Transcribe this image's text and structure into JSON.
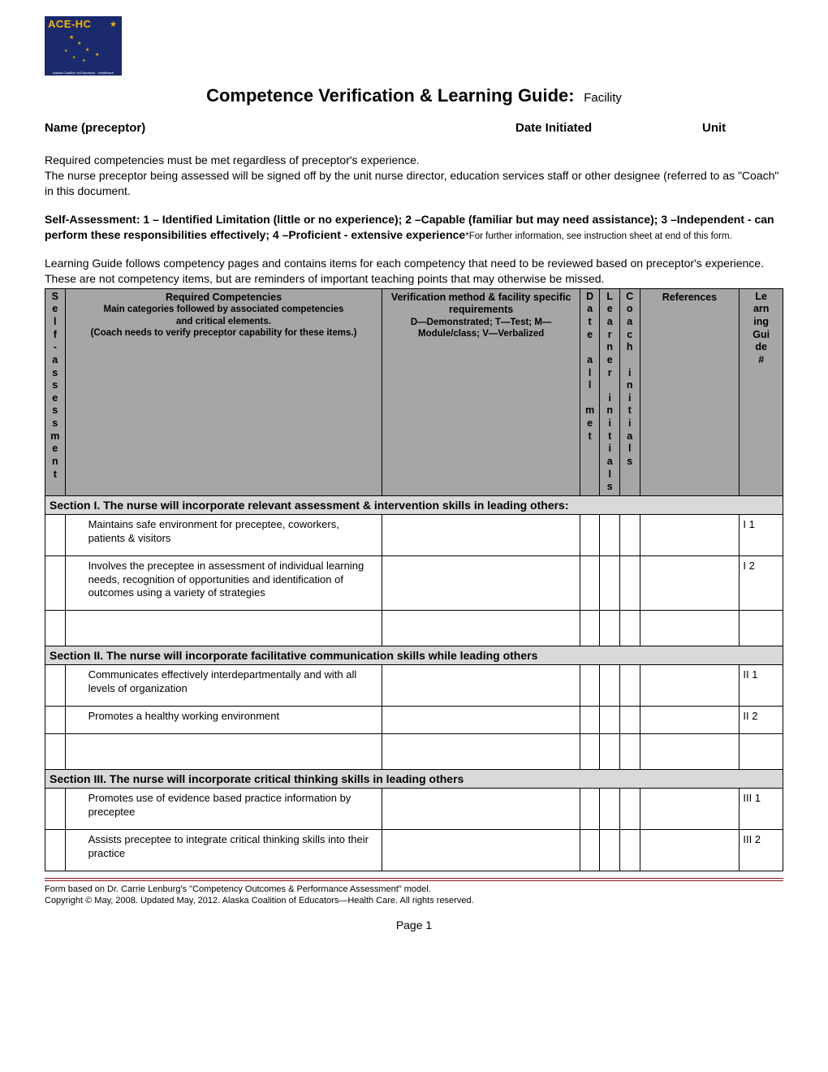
{
  "logo": {
    "brand": "ACE-HC",
    "subtext": "Alaska Coalition of Educators - Healthcare",
    "bg_color": "#1a2a6c",
    "text_color": "#f5b800"
  },
  "title": {
    "main": "Competence Verification & Learning Guide:",
    "suffix": "Facility",
    "main_fontsize": 22,
    "suffix_fontsize": 15
  },
  "fields": {
    "name_label": "Name (preceptor)",
    "date_label": "Date Initiated",
    "unit_label": "Unit"
  },
  "intro": {
    "p1": "Required competencies must be met regardless of preceptor's experience.",
    "p2": "The nurse preceptor being assessed will be signed off by the unit nurse director, education services staff or other designee (referred to as \"Coach\" in this document.",
    "self_assess": "Self-Assessment: 1 – Identified Limitation (little or no experience); 2 –Capable (familiar but may need assistance); 3 –Independent - can perform these responsibilities effectively; 4 –Proficient - extensive experience",
    "self_assess_note": "*For further information, see instruction sheet at end of this form.",
    "learning_guide": "Learning Guide follows competency pages and contains items for each competency that need to be reviewed based on preceptor's experience. These are not competency items, but are reminders of important teaching points that may otherwise be missed."
  },
  "columns": {
    "self": "Self-assessment",
    "req_title": "Required Competencies",
    "req_sub1": "Main categories followed by associated competencies",
    "req_sub2": "and critical elements.",
    "req_sub3": "(Coach needs to verify preceptor capability for these items.)",
    "verif_title": "Verification method & facility specific requirements",
    "verif_sub": "D—Demonstrated; T—Test; M—Module/class; V—Verbalized",
    "date_all_met": "Date all met",
    "learner_initials": "Learner initials",
    "coach_initials": "Coach initials",
    "references": "References",
    "learning_guide_num": "Learning Guide#",
    "widths": {
      "self": 22,
      "req": 350,
      "verif": 218,
      "date": 22,
      "learner": 22,
      "coach": 22,
      "refs": 110,
      "lgnum": 48
    }
  },
  "sections": [
    {
      "header": "Section I. The nurse will incorporate relevant assessment & intervention skills in leading others:",
      "rows": [
        {
          "text": "Maintains safe environment for  preceptee, coworkers, patients & visitors",
          "ref": "I 1"
        },
        {
          "text": "Involves the preceptee in assessment of individual learning needs, recognition of opportunities and identification of outcomes using a variety of strategies",
          "ref": "I 2"
        },
        {
          "blank": true
        }
      ]
    },
    {
      "header": "Section II. The nurse will incorporate facilitative communication skills while leading others",
      "rows": [
        {
          "text": "Communicates effectively interdepartmentally and with all levels of organization",
          "ref": "II 1"
        },
        {
          "text": "Promotes a healthy  working  environment",
          "ref": "II 2"
        },
        {
          "blank": true
        }
      ]
    },
    {
      "header": "Section III.  The nurse will incorporate critical thinking skills in leading others",
      "rows": [
        {
          "text": "Promotes use of evidence based practice information by preceptee",
          "ref": "III 1"
        },
        {
          "text": "Assists preceptee to integrate critical thinking skills into their practice",
          "ref": "III 2"
        }
      ]
    }
  ],
  "footer": {
    "line1": "Form based on Dr. Carrie Lenburg's \"Competency Outcomes & Performance Assessment\" model.",
    "line2": "Copyright © May, 2008. Updated May, 2012.  Alaska Coalition of Educators—Health Care. All rights reserved.",
    "page": "Page 1",
    "rule_color": "#8b1a1a"
  },
  "colors": {
    "header_bg": "#a6a6a6",
    "section_bg": "#d9d9d9",
    "border": "#000000",
    "text": "#000000",
    "page_bg": "#ffffff"
  }
}
